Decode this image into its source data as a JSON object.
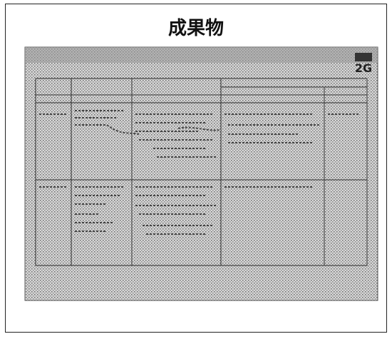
{
  "slide": {
    "title": "成果物",
    "photo_label": "2G"
  }
}
